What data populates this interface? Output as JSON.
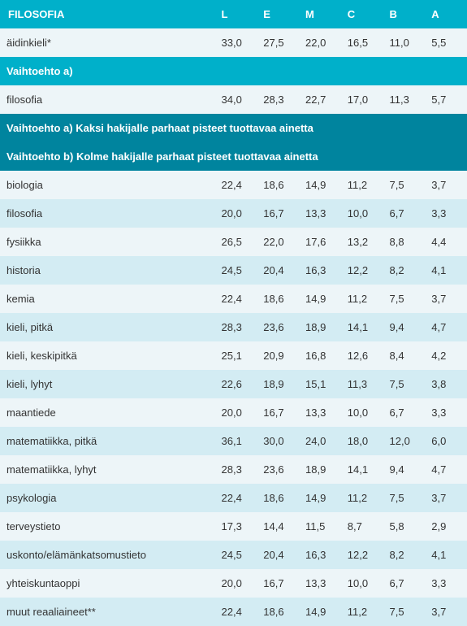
{
  "header": {
    "title": "FILOSOFIA",
    "columns": [
      "L",
      "E",
      "M",
      "C",
      "B",
      "A"
    ]
  },
  "rows": [
    {
      "type": "data",
      "label": "äidinkieli*",
      "values": [
        "33,0",
        "27,5",
        "22,0",
        "16,5",
        "11,0",
        "5,5"
      ],
      "bg": "light"
    },
    {
      "type": "section",
      "label": "Vaihtoehto a)",
      "bg": "teal"
    },
    {
      "type": "data",
      "label": "filosofia",
      "values": [
        "34,0",
        "28,3",
        "22,7",
        "17,0",
        "11,3",
        "5,7"
      ],
      "bg": "light"
    },
    {
      "type": "section",
      "label": "Vaihtoehto a) Kaksi hakijalle parhaat pisteet tuottavaa ainetta",
      "bg": "dark-teal"
    },
    {
      "type": "section",
      "label": "Vaihtoehto b) Kolme hakijalle parhaat pisteet tuottavaa ainetta",
      "bg": "dark-teal"
    },
    {
      "type": "data",
      "label": "biologia",
      "values": [
        "22,4",
        "18,6",
        "14,9",
        "11,2",
        "7,5",
        "3,7"
      ],
      "bg": "light"
    },
    {
      "type": "data",
      "label": "filosofia",
      "values": [
        "20,0",
        "16,7",
        "13,3",
        "10,0",
        "6,7",
        "3,3"
      ],
      "bg": "lighter"
    },
    {
      "type": "data",
      "label": "fysiikka",
      "values": [
        "26,5",
        "22,0",
        "17,6",
        "13,2",
        "8,8",
        "4,4"
      ],
      "bg": "light"
    },
    {
      "type": "data",
      "label": "historia",
      "values": [
        "24,5",
        "20,4",
        "16,3",
        "12,2",
        "8,2",
        "4,1"
      ],
      "bg": "lighter"
    },
    {
      "type": "data",
      "label": "kemia",
      "values": [
        "22,4",
        "18,6",
        "14,9",
        "11,2",
        "7,5",
        "3,7"
      ],
      "bg": "light"
    },
    {
      "type": "data",
      "label": "kieli, pitkä",
      "values": [
        "28,3",
        "23,6",
        "18,9",
        "14,1",
        "9,4",
        "4,7"
      ],
      "bg": "lighter"
    },
    {
      "type": "data",
      "label": "kieli, keskipitkä",
      "values": [
        "25,1",
        "20,9",
        "16,8",
        "12,6",
        "8,4",
        "4,2"
      ],
      "bg": "light"
    },
    {
      "type": "data",
      "label": "kieli, lyhyt",
      "values": [
        "22,6",
        "18,9",
        "15,1",
        "11,3",
        "7,5",
        "3,8"
      ],
      "bg": "lighter"
    },
    {
      "type": "data",
      "label": "maantiede",
      "values": [
        "20,0",
        "16,7",
        "13,3",
        "10,0",
        "6,7",
        "3,3"
      ],
      "bg": "light"
    },
    {
      "type": "data",
      "label": "matematiikka, pitkä",
      "values": [
        "36,1",
        "30,0",
        "24,0",
        "18,0",
        "12,0",
        "6,0"
      ],
      "bg": "lighter"
    },
    {
      "type": "data",
      "label": "matematiikka, lyhyt",
      "values": [
        "28,3",
        "23,6",
        "18,9",
        "14,1",
        "9,4",
        "4,7"
      ],
      "bg": "light"
    },
    {
      "type": "data",
      "label": "psykologia",
      "values": [
        "22,4",
        "18,6",
        "14,9",
        "11,2",
        "7,5",
        "3,7"
      ],
      "bg": "lighter"
    },
    {
      "type": "data",
      "label": "terveystieto",
      "values": [
        "17,3",
        "14,4",
        "11,5",
        "8,7",
        "5,8",
        "2,9"
      ],
      "bg": "light"
    },
    {
      "type": "data",
      "label": "uskonto/elämänkatsomustieto",
      "values": [
        "24,5",
        "20,4",
        "16,3",
        "12,2",
        "8,2",
        "4,1"
      ],
      "bg": "lighter"
    },
    {
      "type": "data",
      "label": "yhteiskuntaoppi",
      "values": [
        "20,0",
        "16,7",
        "13,3",
        "10,0",
        "6,7",
        "3,3"
      ],
      "bg": "light"
    },
    {
      "type": "data",
      "label": "muut reaaliaineet**",
      "values": [
        "22,4",
        "18,6",
        "14,9",
        "11,2",
        "7,5",
        "3,7"
      ],
      "bg": "lighter"
    }
  ],
  "colors": {
    "teal": "#00b0ca",
    "dark_teal": "#00849e",
    "light": "#edf5f8",
    "lighter": "#d3ecf3",
    "text": "#333333"
  }
}
